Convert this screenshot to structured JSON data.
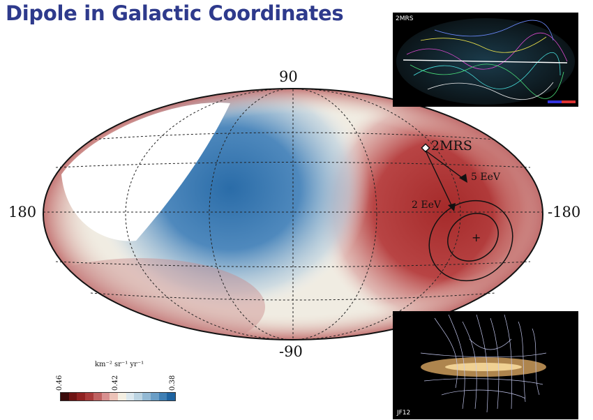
{
  "slide": {
    "title": "Dipole in Galactic Coordinates"
  },
  "map": {
    "lat_top": "90",
    "lat_bottom": "-90",
    "lon_left": "180",
    "lon_right": "-180",
    "marker_2mrs": "2MRS",
    "arrow_5eev": "5 EeV",
    "arrow_2eev": "2 EeV",
    "center_cross": "+"
  },
  "colorbar": {
    "unit": "km⁻² sr⁻¹ yr⁻¹",
    "tick_left": "0.46",
    "tick_mid": "0.42",
    "tick_right": "0.38",
    "colors": [
      "#3a0a0a",
      "#6e1414",
      "#8f2222",
      "#a83a3a",
      "#c06262",
      "#d89090",
      "#ecc3b8",
      "#f4efe2",
      "#dce8ee",
      "#bcd4e2",
      "#93b9d4",
      "#6a9ec6",
      "#3f7fb4",
      "#1e63a0"
    ]
  },
  "insets": {
    "top_right_tag": "2MRS",
    "bottom_right_tag": "JF12"
  }
}
